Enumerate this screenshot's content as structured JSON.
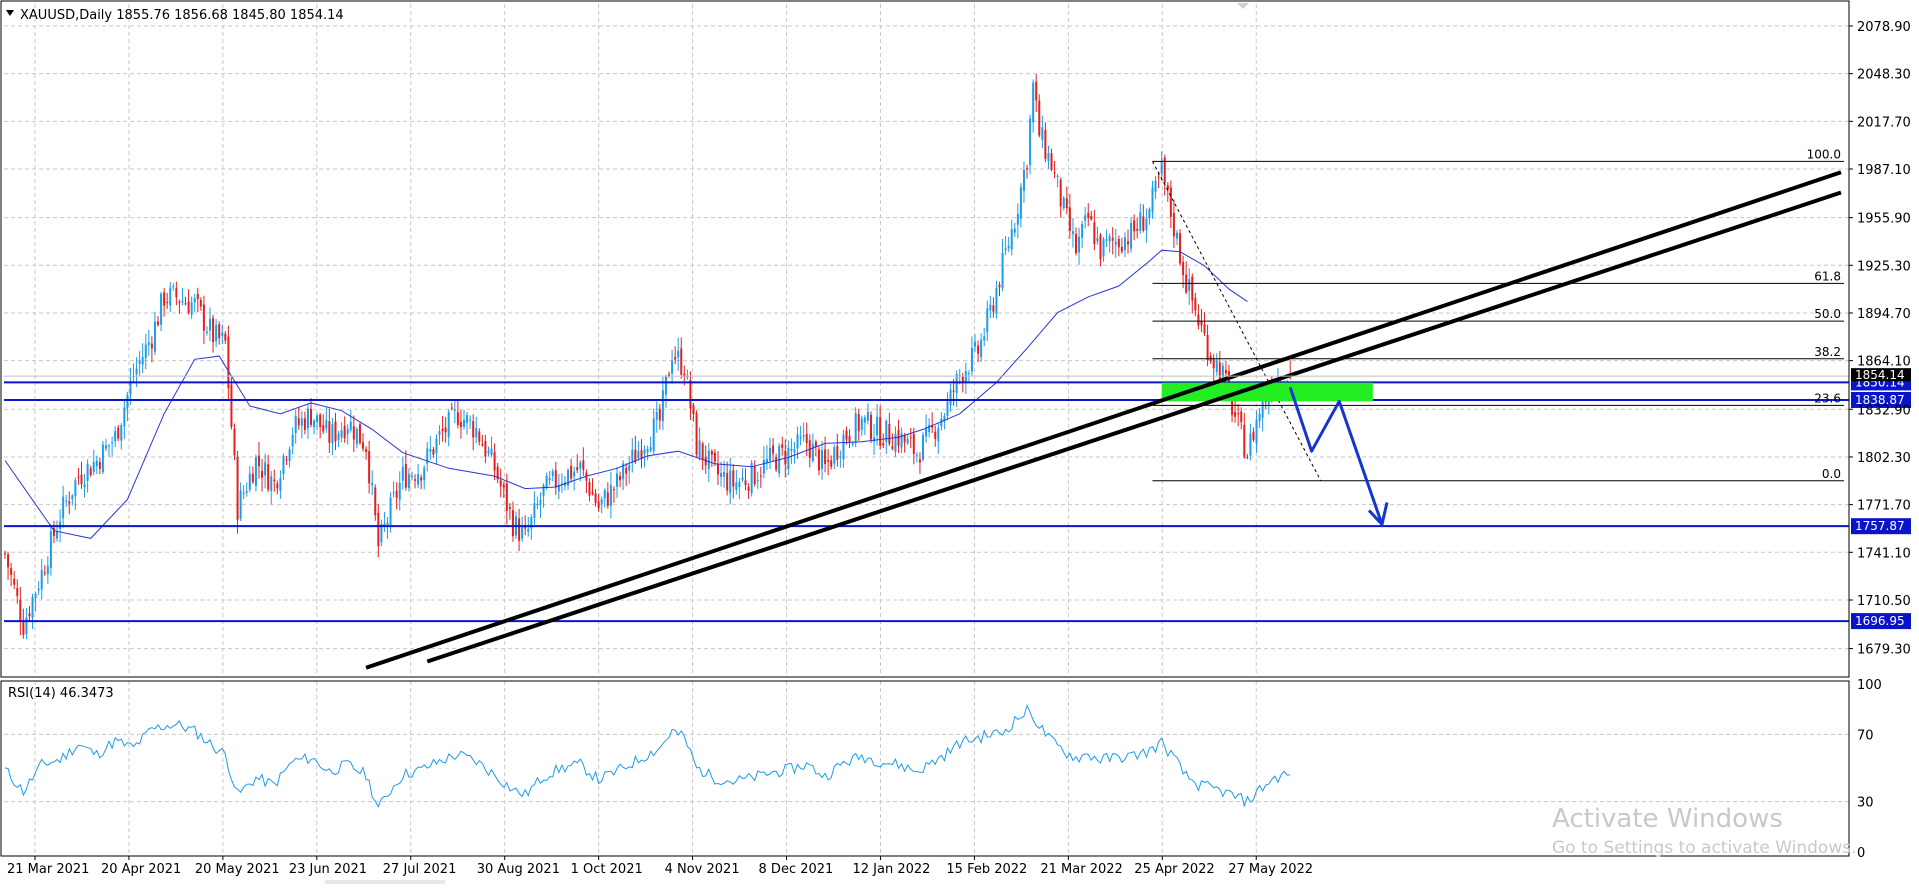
{
  "window": {
    "symbol_info": "XAUUSD,Daily  1855.76 1856.68 1845.80 1854.14",
    "rsi_info": "RSI(14) 46.3473",
    "watermark_title": "Activate Windows",
    "watermark_sub": "Go to Settings to activate Windows."
  },
  "chart_data": {
    "type": "candlestick",
    "symbol": "XAUUSD",
    "timeframe": "Daily",
    "ohlc_info": {
      "open": 1855.76,
      "high": 1856.68,
      "low": 1845.8,
      "close": 1854.14
    },
    "price_axis": {
      "range": [
        1663,
        2093
      ],
      "ticks": [
        "2078.90",
        "2048.30",
        "2017.70",
        "1987.10",
        "1955.90",
        "1925.30",
        "1894.70",
        "1864.10",
        "1832.90",
        "1802.30",
        "1771.70",
        "1741.10",
        "1710.50",
        "1679.30"
      ]
    },
    "time_axis": {
      "labels": [
        "21 Mar 2021",
        "20 Apr 2021",
        "20 May 2021",
        "23 Jun 2021",
        "27 Jul 2021",
        "30 Aug 2021",
        "1 Oct 2021",
        "4 Nov 2021",
        "8 Dec 2021",
        "12 Jan 2022",
        "15 Feb 2022",
        "21 Mar 2022",
        "25 Apr 2022",
        "27 May 2022"
      ]
    },
    "colors": {
      "up": "#1e9be9",
      "down": "#e51e1e",
      "ma": "#2a36d6",
      "hline": "#0a14c8",
      "trendline": "#000000",
      "zone": "#22ee22",
      "arrow": "#1436d0",
      "rsi": "#1e9be9"
    },
    "price_path": [
      [
        0,
        1740
      ],
      [
        6,
        1695
      ],
      [
        12,
        1728
      ],
      [
        18,
        1765
      ],
      [
        24,
        1790
      ],
      [
        30,
        1800
      ],
      [
        36,
        1815
      ],
      [
        42,
        1855
      ],
      [
        48,
        1880
      ],
      [
        52,
        1905
      ],
      [
        56,
        1905
      ],
      [
        62,
        1900
      ],
      [
        68,
        1880
      ],
      [
        72,
        1875
      ],
      [
        76,
        1770
      ],
      [
        82,
        1800
      ],
      [
        88,
        1785
      ],
      [
        94,
        1820
      ],
      [
        100,
        1830
      ],
      [
        106,
        1815
      ],
      [
        112,
        1825
      ],
      [
        118,
        1810
      ],
      [
        122,
        1745
      ],
      [
        126,
        1768
      ],
      [
        130,
        1790
      ],
      [
        136,
        1795
      ],
      [
        142,
        1815
      ],
      [
        148,
        1830
      ],
      [
        154,
        1820
      ],
      [
        160,
        1795
      ],
      [
        166,
        1760
      ],
      [
        170,
        1750
      ],
      [
        176,
        1780
      ],
      [
        182,
        1790
      ],
      [
        188,
        1795
      ],
      [
        194,
        1770
      ],
      [
        200,
        1785
      ],
      [
        208,
        1810
      ],
      [
        214,
        1825
      ],
      [
        218,
        1870
      ],
      [
        222,
        1860
      ],
      [
        226,
        1810
      ],
      [
        232,
        1792
      ],
      [
        238,
        1785
      ],
      [
        244,
        1790
      ],
      [
        250,
        1800
      ],
      [
        256,
        1805
      ],
      [
        262,
        1812
      ],
      [
        268,
        1795
      ],
      [
        274,
        1815
      ],
      [
        280,
        1825
      ],
      [
        286,
        1818
      ],
      [
        292,
        1815
      ],
      [
        298,
        1805
      ],
      [
        302,
        1815
      ],
      [
        308,
        1835
      ],
      [
        312,
        1855
      ],
      [
        318,
        1870
      ],
      [
        322,
        1895
      ],
      [
        326,
        1925
      ],
      [
        330,
        1955
      ],
      [
        334,
        1995
      ],
      [
        336,
        2040
      ],
      [
        338,
        2010
      ],
      [
        342,
        1990
      ],
      [
        346,
        1960
      ],
      [
        350,
        1935
      ],
      [
        354,
        1955
      ],
      [
        358,
        1935
      ],
      [
        362,
        1940
      ],
      [
        368,
        1945
      ],
      [
        374,
        1960
      ],
      [
        378,
        1985
      ],
      [
        382,
        1950
      ],
      [
        386,
        1915
      ],
      [
        390,
        1890
      ],
      [
        394,
        1868
      ],
      [
        398,
        1855
      ],
      [
        402,
        1828
      ],
      [
        406,
        1805
      ],
      [
        410,
        1832
      ],
      [
        414,
        1850
      ],
      [
        418,
        1855
      ],
      [
        420,
        1854.14
      ]
    ],
    "moving_average": [
      [
        0,
        1800
      ],
      [
        16,
        1755
      ],
      [
        28,
        1750
      ],
      [
        40,
        1775
      ],
      [
        52,
        1830
      ],
      [
        62,
        1865
      ],
      [
        70,
        1867
      ],
      [
        80,
        1835
      ],
      [
        90,
        1830
      ],
      [
        100,
        1837
      ],
      [
        110,
        1832
      ],
      [
        120,
        1820
      ],
      [
        130,
        1805
      ],
      [
        145,
        1795
      ],
      [
        160,
        1790
      ],
      [
        170,
        1782
      ],
      [
        180,
        1783
      ],
      [
        190,
        1790
      ],
      [
        200,
        1795
      ],
      [
        210,
        1803
      ],
      [
        220,
        1806
      ],
      [
        232,
        1798
      ],
      [
        244,
        1796
      ],
      [
        256,
        1802
      ],
      [
        268,
        1811
      ],
      [
        280,
        1812
      ],
      [
        292,
        1815
      ],
      [
        300,
        1820
      ],
      [
        312,
        1830
      ],
      [
        324,
        1850
      ],
      [
        334,
        1872
      ],
      [
        344,
        1895
      ],
      [
        354,
        1905
      ],
      [
        364,
        1912
      ],
      [
        374,
        1928
      ],
      [
        378,
        1935
      ],
      [
        384,
        1934
      ],
      [
        392,
        1925
      ],
      [
        400,
        1910
      ],
      [
        406,
        1902
      ]
    ],
    "horizontal_levels": [
      {
        "price": 1850.14,
        "label": "1850.14"
      },
      {
        "price": 1838.87,
        "label": "1838.87"
      },
      {
        "price": 1757.87,
        "label": "1757.87"
      },
      {
        "price": 1696.95,
        "label": "1696.95"
      }
    ],
    "fibonacci": {
      "high": 1992,
      "low": 1787,
      "levels": [
        {
          "ratio": 1.0,
          "label": "100.0"
        },
        {
          "ratio": 0.618,
          "label": "61.8"
        },
        {
          "ratio": 0.5,
          "label": "50.0"
        },
        {
          "ratio": 0.382,
          "label": "38.2"
        },
        {
          "ratio": 0.236,
          "label": "23.6"
        },
        {
          "ratio": 0.0,
          "label": "0.0"
        }
      ]
    },
    "trendlines": [
      {
        "from": [
          118,
          1667
        ],
        "to": [
          600,
          1985
        ]
      },
      {
        "from": [
          138,
          1671
        ],
        "to": [
          600,
          1972
        ]
      }
    ],
    "fib_diagonal": {
      "from": [
        375,
        1992
      ],
      "to": [
        430,
        1787
      ]
    },
    "zone": {
      "from_bar": 378,
      "to_bar": 447,
      "low": 1838,
      "high": 1850
    },
    "projection_arrow": [
      [
        420,
        1847
      ],
      [
        427,
        1806
      ],
      [
        436,
        1838
      ],
      [
        450,
        1759
      ]
    ],
    "rsi": {
      "range": [
        0,
        100
      ],
      "ticks": [
        "100",
        "70",
        "30",
        "0"
      ],
      "path": [
        [
          0,
          49
        ],
        [
          6,
          36
        ],
        [
          12,
          52
        ],
        [
          18,
          55
        ],
        [
          24,
          64
        ],
        [
          30,
          58
        ],
        [
          36,
          66
        ],
        [
          42,
          62
        ],
        [
          48,
          73
        ],
        [
          52,
          75
        ],
        [
          56,
          76
        ],
        [
          62,
          72
        ],
        [
          68,
          63
        ],
        [
          72,
          58
        ],
        [
          76,
          34
        ],
        [
          82,
          44
        ],
        [
          88,
          40
        ],
        [
          94,
          54
        ],
        [
          100,
          56
        ],
        [
          106,
          48
        ],
        [
          112,
          52
        ],
        [
          118,
          46
        ],
        [
          122,
          26
        ],
        [
          126,
          37
        ],
        [
          130,
          46
        ],
        [
          136,
          49
        ],
        [
          142,
          54
        ],
        [
          148,
          58
        ],
        [
          154,
          54
        ],
        [
          160,
          46
        ],
        [
          166,
          37
        ],
        [
          170,
          34
        ],
        [
          176,
          45
        ],
        [
          182,
          50
        ],
        [
          188,
          52
        ],
        [
          194,
          43
        ],
        [
          200,
          48
        ],
        [
          208,
          56
        ],
        [
          214,
          62
        ],
        [
          218,
          72
        ],
        [
          222,
          68
        ],
        [
          226,
          50
        ],
        [
          232,
          44
        ],
        [
          238,
          42
        ],
        [
          244,
          44
        ],
        [
          250,
          47
        ],
        [
          256,
          49
        ],
        [
          262,
          52
        ],
        [
          268,
          45
        ],
        [
          274,
          53
        ],
        [
          280,
          57
        ],
        [
          286,
          54
        ],
        [
          292,
          52
        ],
        [
          298,
          48
        ],
        [
          302,
          52
        ],
        [
          308,
          59
        ],
        [
          312,
          65
        ],
        [
          318,
          68
        ],
        [
          322,
          70
        ],
        [
          326,
          71
        ],
        [
          330,
          78
        ],
        [
          334,
          84
        ],
        [
          336,
          81
        ],
        [
          338,
          75
        ],
        [
          342,
          66
        ],
        [
          346,
          60
        ],
        [
          350,
          56
        ],
        [
          354,
          58
        ],
        [
          358,
          55
        ],
        [
          362,
          56
        ],
        [
          368,
          57
        ],
        [
          374,
          60
        ],
        [
          378,
          65
        ],
        [
          382,
          56
        ],
        [
          386,
          45
        ],
        [
          390,
          40
        ],
        [
          394,
          38
        ],
        [
          398,
          36
        ],
        [
          402,
          33
        ],
        [
          406,
          30
        ],
        [
          410,
          37
        ],
        [
          414,
          43
        ],
        [
          418,
          46
        ],
        [
          420,
          46
        ]
      ]
    }
  }
}
